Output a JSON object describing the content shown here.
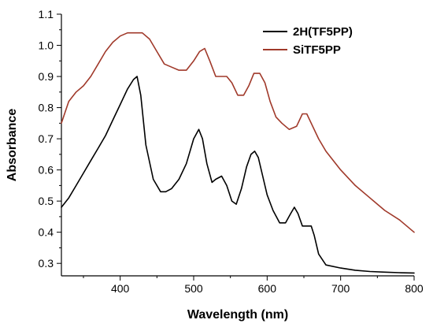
{
  "chart_data": {
    "type": "line",
    "title": "",
    "xlabel": "Wavelength (nm)",
    "ylabel": "Absorbance",
    "xlim": [
      320,
      800
    ],
    "ylim": [
      0.26,
      1.1
    ],
    "xticks": [
      400,
      500,
      600,
      700,
      800
    ],
    "yticks": [
      0.3,
      0.4,
      0.5,
      0.6,
      0.7,
      0.8,
      0.9,
      1.0,
      1.1
    ],
    "ytick_labels": [
      "0.3",
      "0.4",
      "0.5",
      "0.6",
      "0.7",
      "0.8",
      "0.9",
      "1.0",
      "1.1"
    ],
    "grid": false,
    "legend_position": "top-right",
    "series": [
      {
        "name": "2H(TF5PP)",
        "color": "#000000",
        "x": [
          320,
          330,
          340,
          350,
          360,
          370,
          380,
          390,
          400,
          410,
          418,
          423,
          428,
          435,
          445,
          455,
          462,
          470,
          480,
          490,
          500,
          507,
          512,
          518,
          525,
          530,
          538,
          545,
          552,
          558,
          565,
          572,
          578,
          583,
          588,
          594,
          600,
          608,
          617,
          625,
          632,
          637,
          642,
          648,
          655,
          660,
          664,
          670,
          680,
          700,
          720,
          740,
          760,
          780,
          800
        ],
        "y": [
          0.48,
          0.51,
          0.55,
          0.59,
          0.63,
          0.67,
          0.71,
          0.76,
          0.81,
          0.86,
          0.89,
          0.9,
          0.84,
          0.68,
          0.57,
          0.53,
          0.53,
          0.54,
          0.57,
          0.62,
          0.7,
          0.73,
          0.7,
          0.62,
          0.56,
          0.57,
          0.58,
          0.55,
          0.5,
          0.49,
          0.54,
          0.61,
          0.65,
          0.66,
          0.64,
          0.58,
          0.52,
          0.47,
          0.43,
          0.43,
          0.46,
          0.48,
          0.46,
          0.42,
          0.42,
          0.42,
          0.39,
          0.33,
          0.295,
          0.285,
          0.278,
          0.274,
          0.272,
          0.27,
          0.269
        ]
      },
      {
        "name": "SiTF5PP",
        "color": "#A0392A",
        "x": [
          320,
          330,
          340,
          350,
          360,
          370,
          380,
          390,
          400,
          410,
          420,
          430,
          440,
          450,
          460,
          470,
          480,
          490,
          500,
          508,
          515,
          522,
          530,
          538,
          545,
          552,
          560,
          568,
          575,
          582,
          590,
          597,
          604,
          612,
          620,
          630,
          640,
          648,
          654,
          660,
          670,
          680,
          700,
          720,
          740,
          760,
          780,
          800
        ],
        "y": [
          0.75,
          0.82,
          0.85,
          0.87,
          0.9,
          0.94,
          0.98,
          1.01,
          1.03,
          1.04,
          1.04,
          1.04,
          1.02,
          0.98,
          0.94,
          0.93,
          0.92,
          0.92,
          0.95,
          0.98,
          0.99,
          0.95,
          0.9,
          0.9,
          0.9,
          0.88,
          0.84,
          0.84,
          0.87,
          0.91,
          0.91,
          0.88,
          0.82,
          0.77,
          0.75,
          0.73,
          0.74,
          0.78,
          0.78,
          0.75,
          0.7,
          0.66,
          0.6,
          0.55,
          0.51,
          0.47,
          0.44,
          0.4
        ]
      }
    ]
  }
}
